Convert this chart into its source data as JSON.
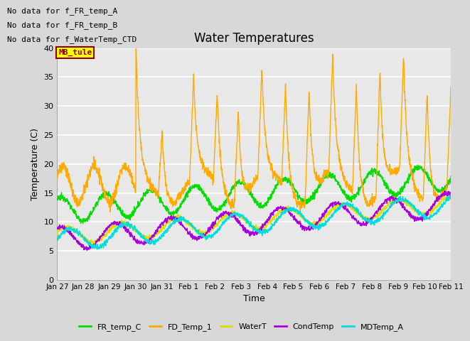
{
  "title": "Water Temperatures",
  "ylabel": "Temperature (C)",
  "xlabel": "Time",
  "ylim": [
    0,
    40
  ],
  "yticks": [
    0,
    5,
    10,
    15,
    20,
    25,
    30,
    35,
    40
  ],
  "xtick_labels": [
    "Jan 27",
    "Jan 28",
    "Jan 29",
    "Jan 30",
    "Jan 31",
    "Feb 1",
    "Feb 2",
    "Feb 3",
    "Feb 4",
    "Feb 5",
    "Feb 6",
    "Feb 7",
    "Feb 8",
    "Feb 9",
    "Feb 10",
    "Feb 11"
  ],
  "annotations": [
    "No data for f_FR_temp_A",
    "No data for f_FR_temp_B",
    "No data for f_WaterTemp_CTD"
  ],
  "mb_tule_label": "MB_tule",
  "series_colors": {
    "FR_temp_C": "#00dd00",
    "FD_Temp_1": "#ffaa00",
    "WaterT": "#dddd00",
    "CondTemp": "#aa00dd",
    "MDTemp_A": "#00dddd"
  },
  "legend_labels": [
    "FR_temp_C",
    "FD_Temp_1",
    "WaterT",
    "CondTemp",
    "MDTemp_A"
  ],
  "fig_bg_color": "#d8d8d8",
  "plot_bg_color": "#e8e8e8",
  "grid_color": "#ffffff",
  "title_fontsize": 12,
  "axis_label_fontsize": 9,
  "tick_fontsize": 8,
  "legend_fontsize": 8,
  "annotation_fontsize": 8
}
